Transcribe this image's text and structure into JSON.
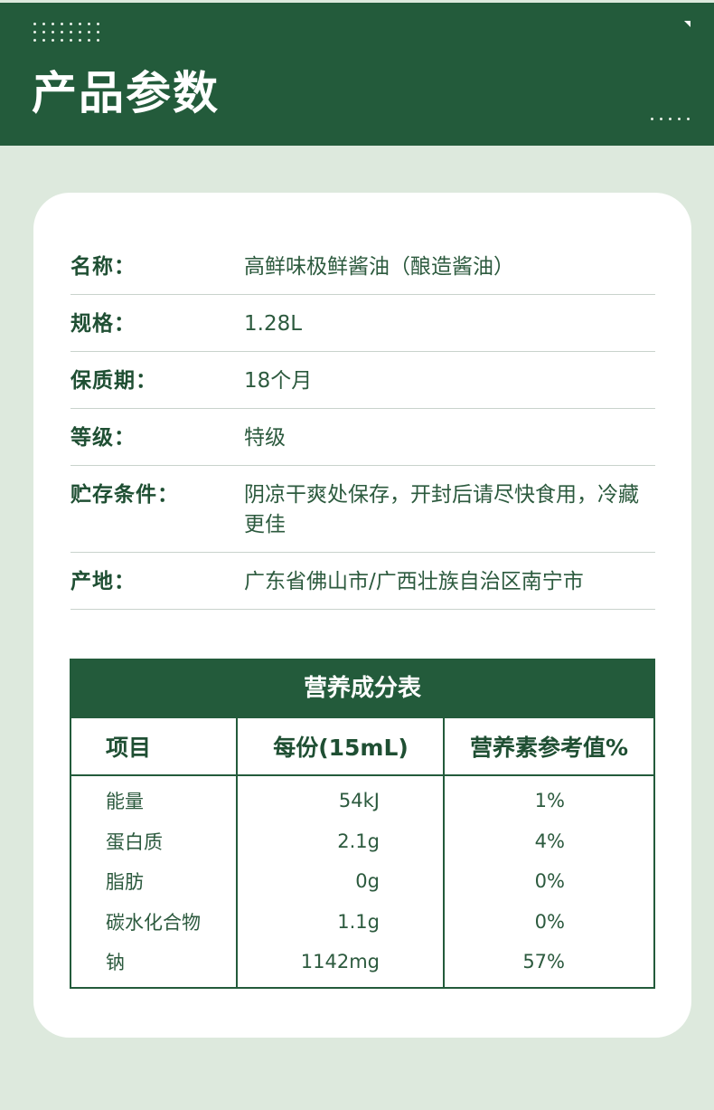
{
  "header": {
    "title": "产品参数"
  },
  "params": [
    {
      "label": "名称：",
      "value": "高鲜味极鲜酱油（酿造酱油）"
    },
    {
      "label": "规格：",
      "value": "1.28L"
    },
    {
      "label": "保质期：",
      "value": "18个月"
    },
    {
      "label": "等级：",
      "value": "特级"
    },
    {
      "label": "贮存条件：",
      "value": "阴凉干爽处保存，开封后请尽快食用，冷藏更佳"
    },
    {
      "label": "产地：",
      "value": "广东省佛山市/广西壮族自治区南宁市"
    }
  ],
  "nutrition": {
    "title": "营养成分表",
    "headers": [
      "项目",
      "每份(15mL)",
      "营养素参考值%"
    ],
    "rows": [
      [
        "能量",
        "54kJ",
        "1%"
      ],
      [
        "蛋白质",
        "2.1g",
        "4%"
      ],
      [
        "脂肪",
        "0g",
        "0%"
      ],
      [
        "碳水化合物",
        "1.1g",
        "0%"
      ],
      [
        "钠",
        "1142mg",
        "57%"
      ]
    ]
  },
  "colors": {
    "brand_green": "#235b3b",
    "background": "#dde9dd",
    "text": "#1f4f33"
  }
}
